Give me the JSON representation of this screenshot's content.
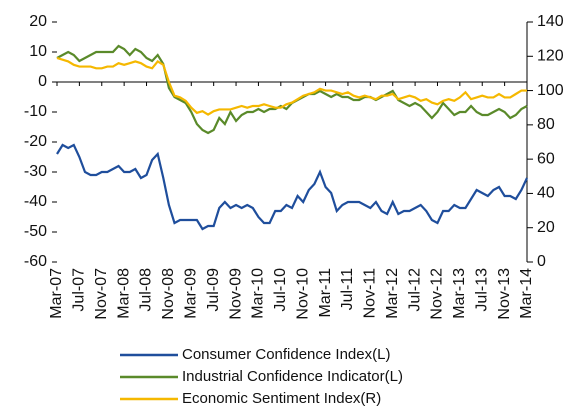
{
  "chart_data": {
    "type": "line",
    "categories": [
      "Mar-07",
      null,
      null,
      null,
      "Jul-07",
      null,
      null,
      null,
      "Nov-07",
      null,
      null,
      null,
      "Mar-08",
      null,
      null,
      null,
      "Jul-08",
      null,
      null,
      null,
      "Nov-08",
      null,
      null,
      null,
      "Mar-09",
      null,
      null,
      null,
      "Jul-09",
      null,
      null,
      null,
      "Nov-09",
      null,
      null,
      null,
      "Mar-10",
      null,
      null,
      null,
      "Jul-10",
      null,
      null,
      null,
      "Nov-10",
      null,
      null,
      null,
      "Mar-11",
      null,
      null,
      null,
      "Jul-11",
      null,
      null,
      null,
      "Nov-11",
      null,
      null,
      null,
      "Mar-12",
      null,
      null,
      null,
      "Jul-12",
      null,
      null,
      null,
      "Nov-12",
      null,
      null,
      null,
      "Mar-13",
      null,
      null,
      null,
      "Jul-13",
      null,
      null,
      null,
      "Nov-13",
      null,
      null,
      null,
      "Mar-14"
    ],
    "ylim": [
      -60,
      20
    ],
    "yticks": [
      -60,
      -50,
      -40,
      -30,
      -20,
      -10,
      0,
      10,
      20
    ],
    "y2lim": [
      0,
      140
    ],
    "y2ticks": [
      0,
      20,
      40,
      60,
      80,
      100,
      120,
      140
    ],
    "series": [
      {
        "name": "Consumer Confidence Index(L)",
        "color": "#1f4e9c",
        "values": [
          -24,
          -21,
          -22,
          -21,
          -25,
          -30,
          -31,
          -31,
          -30,
          -30,
          -29,
          -28,
          -30,
          -30,
          -29,
          -32,
          -31,
          -26,
          -24,
          -32,
          -41,
          -47,
          -46,
          -46,
          -46,
          -46,
          -49,
          -48,
          -48,
          -42,
          -40,
          -42,
          -41,
          -42,
          -41,
          -42,
          -45,
          -47,
          -47,
          -43,
          -43,
          -41,
          -42,
          -38,
          -40,
          -36,
          -34,
          -30,
          -35,
          -37,
          -43,
          -41,
          -40,
          -40,
          -40,
          -41,
          -42,
          -40,
          -43,
          -44,
          -40,
          -44,
          -43,
          -43,
          -42,
          -41,
          -43,
          -46,
          -47,
          -43,
          -43,
          -41,
          -42,
          -42,
          -39,
          -36,
          -37,
          -38,
          -36,
          -35,
          -38,
          -38,
          -39,
          -36,
          -32
        ]
      },
      {
        "name": "Industrial Confidence Indicator(L)",
        "color": "#5a8a2a",
        "values": [
          8,
          9,
          10,
          9,
          7,
          8,
          9,
          10,
          10,
          10,
          10,
          12,
          11,
          9,
          11,
          10,
          8,
          7,
          9,
          6,
          -2,
          -5,
          -6,
          -7,
          -10,
          -14,
          -16,
          -17,
          -16,
          -12,
          -14,
          -10,
          -13,
          -11,
          -10,
          -10,
          -9,
          -10,
          -9,
          -9,
          -8,
          -9,
          -7,
          -6,
          -5,
          -4,
          -4,
          -3,
          -4,
          -5,
          -4,
          -5,
          -5,
          -6,
          -6,
          -5,
          -5,
          -6,
          -5,
          -4,
          -3,
          -6,
          -7,
          -8,
          -7,
          -8,
          -10,
          -12,
          -10,
          -7,
          -9,
          -11,
          -10,
          -10,
          -8,
          -10,
          -11,
          -11,
          -10,
          -9,
          -10,
          -12,
          -11,
          -9,
          -8
        ]
      },
      {
        "name": "Economic Sentiment Index(R)",
        "color": "#f5b800",
        "axis": "y2",
        "values": [
          119,
          118,
          117,
          115,
          114,
          114,
          114,
          113,
          113,
          114,
          114,
          116,
          115,
          116,
          117,
          116,
          114,
          113,
          117,
          115,
          105,
          97,
          96,
          94,
          90,
          87,
          88,
          86,
          88,
          89,
          89,
          89,
          90,
          91,
          90,
          91,
          91,
          92,
          91,
          90,
          90,
          92,
          93,
          95,
          97,
          98,
          99,
          101,
          100,
          100,
          99,
          98,
          99,
          97,
          96,
          97,
          96,
          95,
          97,
          97,
          98,
          95,
          96,
          97,
          96,
          94,
          95,
          93,
          92,
          94,
          95,
          94,
          96,
          99,
          95,
          96,
          97,
          96,
          96,
          98,
          96,
          96,
          98,
          100,
          100
        ]
      }
    ]
  }
}
